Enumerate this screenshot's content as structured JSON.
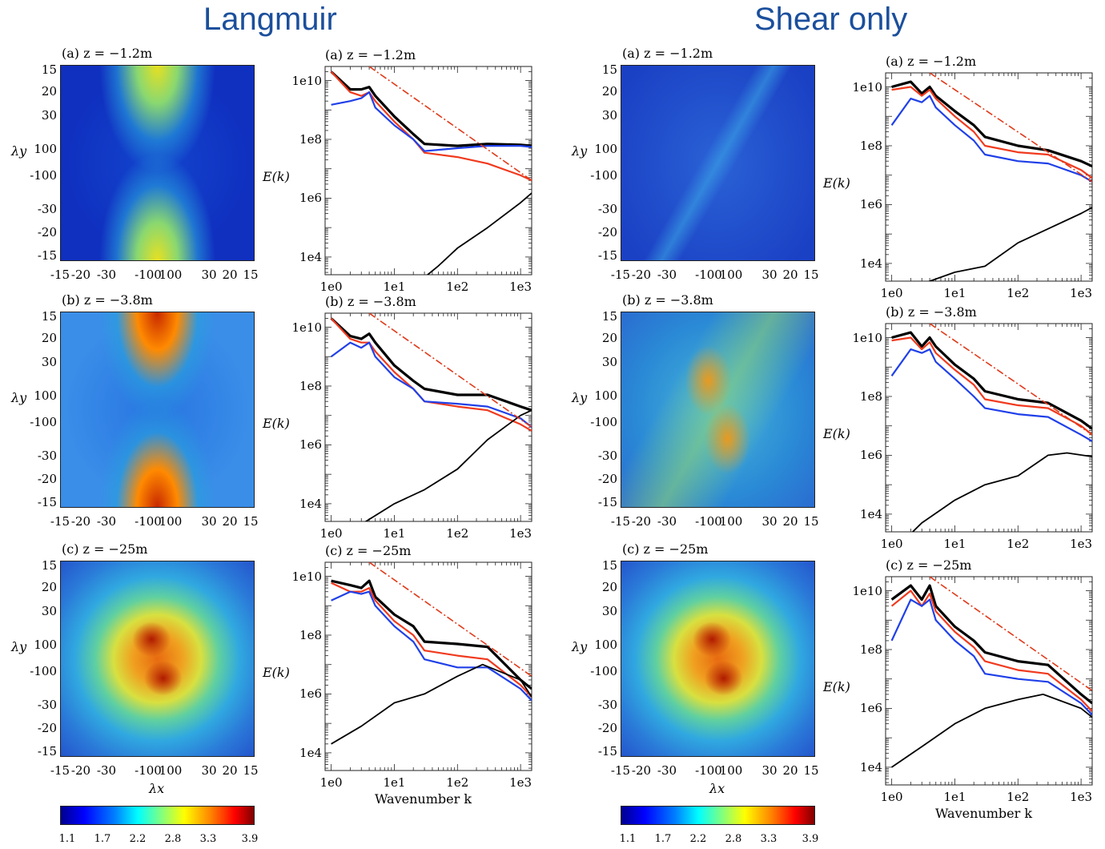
{
  "groups": [
    {
      "title": "Langmuir",
      "rows": [
        {
          "heat_title": "(a) z = −1.2m",
          "spec_title": "(a) z = −1.2m",
          "pattern": "x",
          "intensity": 0.45
        },
        {
          "heat_title": "(b) z = −3.8m",
          "spec_title": "(b) z = −3.8m",
          "pattern": "x",
          "intensity": 0.85
        },
        {
          "heat_title": "(c) z = −25m",
          "spec_title": "(c) z = −25m",
          "pattern": "blob",
          "intensity": 0.8
        }
      ]
    },
    {
      "title": "Shear only",
      "rows": [
        {
          "heat_title": "(a) z = −1.2m",
          "spec_title": "(a) z = −1.2m",
          "pattern": "diag",
          "intensity": 0.25
        },
        {
          "heat_title": "(b) z = −3.8m",
          "spec_title": "(b) z = −3.8m",
          "pattern": "diag",
          "intensity": 0.55
        },
        {
          "heat_title": "(c) z = −25m",
          "spec_title": "(c) z = −25m",
          "pattern": "blob",
          "intensity": 0.8
        }
      ]
    }
  ],
  "heatmap_axes": {
    "x_ticks": [
      "-15",
      "-20",
      "-30",
      "-100",
      "100",
      "30",
      "20",
      "15"
    ],
    "y_ticks": [
      "15",
      "20",
      "30",
      "100",
      "-100",
      "-30",
      "-20",
      "-15"
    ],
    "xlabel": "λx",
    "ylabel": "λy"
  },
  "colorbar": {
    "ticks": [
      "1.1",
      "1.7",
      "2.2",
      "2.8",
      "3.3",
      "3.9"
    ]
  },
  "spectrum_axes": {
    "x_ticks": [
      "1e0",
      "1e1",
      "1e2",
      "1e3"
    ],
    "y_ticks": [
      "1e10",
      "1e8",
      "1e6",
      "1e4"
    ],
    "ylabel": "E(k)",
    "xlabel": "Wavenumber k"
  },
  "colors": {
    "title": "#1b4f9c",
    "black": "#000000",
    "red": "#f03a1e",
    "blue": "#2040e8",
    "reference": "#e03a1a"
  },
  "chart_data": [
    {
      "type": "line",
      "panel": "Langmuir (a) z = −1.2m",
      "xlim": [
        1,
        1500
      ],
      "ylim": [
        1000,
        30000000000
      ],
      "log_x": true,
      "log_y": true,
      "ylabel": "E(k)",
      "xlabel": "",
      "series": [
        {
          "color": "black-thick",
          "x": [
            1,
            2,
            3,
            4,
            5,
            10,
            20,
            30,
            100,
            300,
            1000,
            1500
          ],
          "values": [
            20000000000,
            5000000000,
            5000000000,
            6000000000,
            3000000000,
            600000000,
            150000000,
            70000000,
            60000000,
            70000000,
            65000000,
            60000000
          ]
        },
        {
          "color": "red",
          "x": [
            1,
            2,
            3,
            4,
            5,
            10,
            20,
            30,
            100,
            300,
            1000,
            1500
          ],
          "values": [
            20000000000,
            4000000000,
            3000000000,
            4000000000,
            2000000000,
            400000000,
            100000000,
            35000000,
            25000000,
            15000000,
            6000000,
            4000000
          ]
        },
        {
          "color": "blue",
          "x": [
            1,
            2,
            3,
            4,
            5,
            10,
            20,
            30,
            100,
            300,
            1000,
            1500
          ],
          "values": [
            1500000000,
            2000000000,
            2500000000,
            4000000000,
            1200000000,
            300000000,
            100000000,
            40000000,
            50000000,
            60000000,
            60000000,
            55000000
          ]
        },
        {
          "color": "black-thin",
          "x": [
            10,
            20,
            50,
            100,
            300,
            1000,
            1500
          ],
          "values": [
            500,
            1000,
            5000,
            20000,
            100000,
            700000,
            1500000
          ]
        },
        {
          "color": "reference",
          "x": [
            4,
            1500
          ],
          "values": [
            30000000000,
            4000000
          ]
        }
      ]
    },
    {
      "type": "line",
      "panel": "Langmuir (b) z = −3.8m",
      "xlim": [
        1,
        1500
      ],
      "ylim": [
        1000,
        30000000000
      ],
      "log_x": true,
      "log_y": true,
      "ylabel": "E(k)",
      "xlabel": "",
      "series": [
        {
          "color": "black-thick",
          "x": [
            1,
            2,
            3,
            4,
            5,
            10,
            20,
            30,
            100,
            300,
            1000,
            1500
          ],
          "values": [
            20000000000,
            5000000000,
            4000000000,
            6000000000,
            3000000000,
            500000000,
            150000000,
            80000000,
            50000000,
            50000000,
            20000000,
            15000000
          ]
        },
        {
          "color": "red",
          "x": [
            1,
            2,
            3,
            4,
            5,
            10,
            20,
            30,
            100,
            300,
            1000,
            1500
          ],
          "values": [
            20000000000,
            4000000000,
            3000000000,
            3000000000,
            1500000000,
            300000000,
            80000000,
            30000000,
            20000000,
            15000000,
            5000000,
            3000000
          ]
        },
        {
          "color": "blue",
          "x": [
            1,
            2,
            3,
            4,
            5,
            10,
            20,
            30,
            100,
            300,
            1000,
            1500
          ],
          "values": [
            1000000000,
            3000000000,
            2000000000,
            3000000000,
            1000000000,
            200000000,
            80000000,
            30000000,
            25000000,
            20000000,
            8000000,
            4000000
          ]
        },
        {
          "color": "black-thin",
          "x": [
            1,
            3,
            10,
            30,
            100,
            300,
            1000,
            1500
          ],
          "values": [
            1000,
            2000,
            10000,
            30000,
            150000,
            1500000,
            10000000,
            15000000
          ]
        },
        {
          "color": "reference",
          "x": [
            4,
            1500
          ],
          "values": [
            30000000000,
            4000000
          ]
        }
      ]
    },
    {
      "type": "line",
      "panel": "Langmuir (c) z = −25m",
      "xlim": [
        1,
        1500
      ],
      "ylim": [
        1000,
        30000000000
      ],
      "log_x": true,
      "log_y": true,
      "ylabel": "E(k)",
      "xlabel": "Wavenumber k",
      "series": [
        {
          "color": "black-thick",
          "x": [
            1,
            2,
            3,
            4,
            5,
            10,
            20,
            30,
            100,
            300,
            1000,
            1500
          ],
          "values": [
            7000000000,
            5000000000,
            4000000000,
            7000000000,
            2000000000,
            500000000,
            200000000,
            60000000,
            50000000,
            40000000,
            3000000,
            1500000
          ]
        },
        {
          "color": "red",
          "x": [
            1,
            2,
            3,
            4,
            5,
            10,
            20,
            30,
            100,
            300,
            1000,
            1500
          ],
          "values": [
            6000000000,
            3000000000,
            3000000000,
            4000000000,
            1500000000,
            300000000,
            100000000,
            30000000,
            20000000,
            15000000,
            2000000,
            800000
          ]
        },
        {
          "color": "blue",
          "x": [
            1,
            2,
            3,
            4,
            5,
            10,
            20,
            30,
            100,
            300,
            1000,
            1500
          ],
          "values": [
            1500000000,
            3000000000,
            2500000000,
            3000000000,
            1000000000,
            200000000,
            60000000,
            15000000,
            8000000,
            8000000,
            1500000,
            600000
          ]
        },
        {
          "color": "black-thin",
          "x": [
            1,
            3,
            10,
            30,
            100,
            250,
            1000,
            1500
          ],
          "values": [
            20000,
            80000,
            500000,
            1000000,
            4000000,
            10000000,
            3000000,
            800000
          ]
        },
        {
          "color": "reference",
          "x": [
            4,
            1500
          ],
          "values": [
            30000000000,
            4000000
          ]
        }
      ]
    },
    {
      "type": "line",
      "panel": "Shear only (a) z = −1.2m",
      "xlim": [
        1,
        1500
      ],
      "ylim": [
        1000,
        30000000000
      ],
      "log_x": true,
      "log_y": true,
      "ylabel": "E(k)",
      "xlabel": "",
      "series": [
        {
          "color": "black-thick",
          "x": [
            1,
            2,
            3,
            4,
            5,
            10,
            20,
            30,
            100,
            300,
            1000,
            1500
          ],
          "values": [
            10000000000,
            15000000000,
            6000000000,
            10000000000,
            5000000000,
            1500000000,
            500000000,
            200000000,
            100000000,
            70000000,
            30000000,
            20000000
          ]
        },
        {
          "color": "red",
          "x": [
            1,
            2,
            3,
            4,
            5,
            10,
            20,
            30,
            100,
            300,
            1000,
            1500
          ],
          "values": [
            8000000000,
            10000000000,
            5000000000,
            8000000000,
            4000000000,
            1000000000,
            300000000,
            100000000,
            60000000,
            50000000,
            15000000,
            8000000
          ]
        },
        {
          "color": "blue",
          "x": [
            1,
            2,
            3,
            4,
            5,
            10,
            20,
            30,
            100,
            300,
            1000,
            1500
          ],
          "values": [
            500000000,
            4000000000,
            3000000000,
            5000000000,
            2000000000,
            500000000,
            150000000,
            50000000,
            30000000,
            25000000,
            10000000,
            6000000
          ]
        },
        {
          "color": "black-thin",
          "x": [
            2,
            3,
            10,
            30,
            100,
            300,
            1000,
            1500
          ],
          "values": [
            500,
            2000,
            5000,
            8000,
            50000,
            150000,
            500000,
            800000
          ]
        },
        {
          "color": "reference",
          "x": [
            4,
            1500
          ],
          "values": [
            30000000000,
            6000000
          ]
        }
      ]
    },
    {
      "type": "line",
      "panel": "Shear only (b) z = −3.8m",
      "xlim": [
        1,
        1500
      ],
      "ylim": [
        1000,
        30000000000
      ],
      "log_x": true,
      "log_y": true,
      "ylabel": "E(k)",
      "xlabel": "",
      "series": [
        {
          "color": "black-thick",
          "x": [
            1,
            2,
            3,
            4,
            5,
            10,
            20,
            30,
            100,
            300,
            1000,
            1500
          ],
          "values": [
            10000000000,
            15000000000,
            5000000000,
            10000000000,
            5000000000,
            1200000000,
            400000000,
            150000000,
            80000000,
            60000000,
            15000000,
            8000000
          ]
        },
        {
          "color": "red",
          "x": [
            1,
            2,
            3,
            4,
            5,
            10,
            20,
            30,
            100,
            300,
            1000,
            1500
          ],
          "values": [
            8000000000,
            10000000000,
            4000000000,
            7000000000,
            3000000000,
            800000000,
            250000000,
            80000000,
            50000000,
            40000000,
            10000000,
            5000000
          ]
        },
        {
          "color": "blue",
          "x": [
            1,
            2,
            3,
            4,
            5,
            10,
            20,
            30,
            100,
            300,
            1000,
            1500
          ],
          "values": [
            500000000,
            4000000000,
            3000000000,
            4000000000,
            1500000000,
            400000000,
            100000000,
            40000000,
            25000000,
            20000000,
            5000000,
            3000000
          ]
        },
        {
          "color": "black-thin",
          "x": [
            1,
            3,
            10,
            30,
            100,
            300,
            600,
            1500
          ],
          "values": [
            500,
            5000,
            30000,
            100000,
            200000,
            1000000,
            1200000,
            900000
          ]
        },
        {
          "color": "reference",
          "x": [
            4,
            1500
          ],
          "values": [
            30000000000,
            5000000
          ]
        }
      ]
    },
    {
      "type": "line",
      "panel": "Shear only (c) z = −25m",
      "xlim": [
        1,
        1500
      ],
      "ylim": [
        1000,
        30000000000
      ],
      "log_x": true,
      "log_y": true,
      "ylabel": "E(k)",
      "xlabel": "Wavenumber k",
      "series": [
        {
          "color": "black-thick",
          "x": [
            1,
            2,
            3,
            4,
            5,
            10,
            20,
            30,
            100,
            300,
            1000,
            1500
          ],
          "values": [
            5000000000,
            15000000000,
            5000000000,
            15000000000,
            3000000000,
            600000000,
            200000000,
            80000000,
            40000000,
            30000000,
            3000000,
            1500000
          ]
        },
        {
          "color": "red",
          "x": [
            1,
            2,
            3,
            4,
            5,
            10,
            20,
            30,
            100,
            300,
            1000,
            1500
          ],
          "values": [
            3000000000,
            10000000000,
            3000000000,
            8000000000,
            2000000000,
            400000000,
            120000000,
            40000000,
            20000000,
            15000000,
            2000000,
            800000
          ]
        },
        {
          "color": "blue",
          "x": [
            1,
            2,
            3,
            4,
            5,
            10,
            20,
            30,
            100,
            300,
            1000,
            1500
          ],
          "values": [
            200000000,
            5000000000,
            3000000000,
            5000000000,
            1000000000,
            200000000,
            60000000,
            15000000,
            10000000,
            8000000,
            1500000,
            600000
          ]
        },
        {
          "color": "black-thin",
          "x": [
            1,
            3,
            10,
            30,
            100,
            250,
            1000,
            1500
          ],
          "values": [
            10000,
            50000,
            300000,
            1000000,
            2000000,
            3000000,
            1000000,
            500000
          ]
        },
        {
          "color": "reference",
          "x": [
            4,
            1500
          ],
          "values": [
            30000000000,
            4000000
          ]
        }
      ]
    }
  ]
}
